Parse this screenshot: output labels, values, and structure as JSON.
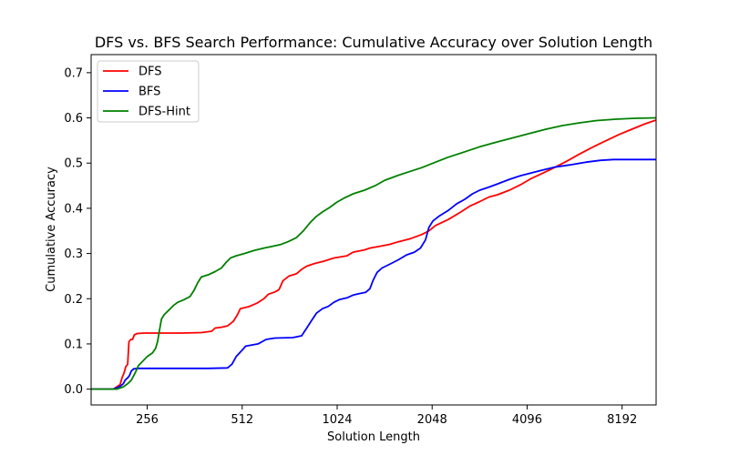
{
  "chart_data": {
    "type": "line",
    "title": "DFS vs. BFS Search Performance: Cumulative Accuracy over Solution Length",
    "xlabel": "Solution Length",
    "ylabel": "Cumulative Accuracy",
    "x_scale": "log2",
    "xlim": [
      170,
      10500
    ],
    "ylim": [
      -0.035,
      0.74
    ],
    "x_ticks": [
      256,
      512,
      1024,
      2048,
      4096,
      8192
    ],
    "x_tick_labels": [
      "256",
      "512",
      "1024",
      "2048",
      "4096",
      "8192"
    ],
    "y_ticks": [
      0.0,
      0.1,
      0.2,
      0.3,
      0.4,
      0.5,
      0.6,
      0.7
    ],
    "y_tick_labels": [
      "0.0",
      "0.1",
      "0.2",
      "0.3",
      "0.4",
      "0.5",
      "0.6",
      "0.7"
    ],
    "legend_position": "upper-left",
    "grid": false,
    "series": [
      {
        "name": "DFS",
        "color": "#ff0000",
        "points": [
          [
            170,
            0.0
          ],
          [
            200,
            0.0
          ],
          [
            205,
            0.005
          ],
          [
            210,
            0.01
          ],
          [
            213,
            0.025
          ],
          [
            216,
            0.035
          ],
          [
            219,
            0.05
          ],
          [
            222,
            0.055
          ],
          [
            224,
            0.105
          ],
          [
            227,
            0.11
          ],
          [
            230,
            0.11
          ],
          [
            233,
            0.12
          ],
          [
            238,
            0.123
          ],
          [
            250,
            0.124
          ],
          [
            330,
            0.124
          ],
          [
            380,
            0.125
          ],
          [
            410,
            0.128
          ],
          [
            420,
            0.135
          ],
          [
            440,
            0.137
          ],
          [
            460,
            0.14
          ],
          [
            480,
            0.15
          ],
          [
            495,
            0.165
          ],
          [
            505,
            0.178
          ],
          [
            540,
            0.183
          ],
          [
            570,
            0.19
          ],
          [
            600,
            0.2
          ],
          [
            620,
            0.21
          ],
          [
            650,
            0.215
          ],
          [
            670,
            0.22
          ],
          [
            690,
            0.24
          ],
          [
            720,
            0.25
          ],
          [
            760,
            0.255
          ],
          [
            790,
            0.265
          ],
          [
            820,
            0.272
          ],
          [
            870,
            0.278
          ],
          [
            930,
            0.283
          ],
          [
            1000,
            0.29
          ],
          [
            1100,
            0.295
          ],
          [
            1150,
            0.303
          ],
          [
            1250,
            0.308
          ],
          [
            1300,
            0.312
          ],
          [
            1400,
            0.316
          ],
          [
            1500,
            0.32
          ],
          [
            1600,
            0.326
          ],
          [
            1750,
            0.333
          ],
          [
            1900,
            0.342
          ],
          [
            2000,
            0.35
          ],
          [
            2100,
            0.362
          ],
          [
            2300,
            0.375
          ],
          [
            2500,
            0.39
          ],
          [
            2700,
            0.405
          ],
          [
            2900,
            0.415
          ],
          [
            3100,
            0.425
          ],
          [
            3300,
            0.43
          ],
          [
            3600,
            0.44
          ],
          [
            3900,
            0.452
          ],
          [
            4200,
            0.465
          ],
          [
            4600,
            0.478
          ],
          [
            5000,
            0.49
          ],
          [
            5500,
            0.505
          ],
          [
            6000,
            0.52
          ],
          [
            6600,
            0.535
          ],
          [
            7200,
            0.548
          ],
          [
            8000,
            0.563
          ],
          [
            8800,
            0.575
          ],
          [
            9700,
            0.587
          ],
          [
            10500,
            0.595
          ]
        ]
      },
      {
        "name": "BFS",
        "color": "#0000ff",
        "points": [
          [
            170,
            0.0
          ],
          [
            200,
            0.0
          ],
          [
            205,
            0.003
          ],
          [
            210,
            0.006
          ],
          [
            215,
            0.012
          ],
          [
            218,
            0.02
          ],
          [
            222,
            0.025
          ],
          [
            225,
            0.03
          ],
          [
            228,
            0.04
          ],
          [
            232,
            0.045
          ],
          [
            240,
            0.046
          ],
          [
            300,
            0.046
          ],
          [
            400,
            0.046
          ],
          [
            460,
            0.047
          ],
          [
            475,
            0.055
          ],
          [
            490,
            0.072
          ],
          [
            510,
            0.085
          ],
          [
            525,
            0.095
          ],
          [
            545,
            0.097
          ],
          [
            575,
            0.1
          ],
          [
            610,
            0.11
          ],
          [
            650,
            0.113
          ],
          [
            740,
            0.114
          ],
          [
            790,
            0.118
          ],
          [
            820,
            0.135
          ],
          [
            850,
            0.152
          ],
          [
            880,
            0.168
          ],
          [
            920,
            0.178
          ],
          [
            960,
            0.183
          ],
          [
            1000,
            0.192
          ],
          [
            1040,
            0.198
          ],
          [
            1100,
            0.202
          ],
          [
            1150,
            0.208
          ],
          [
            1200,
            0.211
          ],
          [
            1260,
            0.214
          ],
          [
            1300,
            0.222
          ],
          [
            1330,
            0.24
          ],
          [
            1370,
            0.258
          ],
          [
            1420,
            0.268
          ],
          [
            1500,
            0.276
          ],
          [
            1600,
            0.286
          ],
          [
            1700,
            0.297
          ],
          [
            1800,
            0.303
          ],
          [
            1880,
            0.312
          ],
          [
            1950,
            0.33
          ],
          [
            2000,
            0.358
          ],
          [
            2060,
            0.372
          ],
          [
            2150,
            0.382
          ],
          [
            2300,
            0.395
          ],
          [
            2450,
            0.41
          ],
          [
            2600,
            0.42
          ],
          [
            2750,
            0.432
          ],
          [
            2900,
            0.44
          ],
          [
            3100,
            0.447
          ],
          [
            3300,
            0.454
          ],
          [
            3600,
            0.464
          ],
          [
            3900,
            0.472
          ],
          [
            4200,
            0.478
          ],
          [
            4600,
            0.485
          ],
          [
            5000,
            0.491
          ],
          [
            5600,
            0.496
          ],
          [
            6300,
            0.502
          ],
          [
            7000,
            0.506
          ],
          [
            7700,
            0.508
          ],
          [
            8500,
            0.508
          ],
          [
            10500,
            0.508
          ]
        ]
      },
      {
        "name": "DFS-Hint",
        "color": "#008000",
        "points": [
          [
            170,
            0.0
          ],
          [
            205,
            0.0
          ],
          [
            215,
            0.005
          ],
          [
            222,
            0.012
          ],
          [
            228,
            0.02
          ],
          [
            232,
            0.03
          ],
          [
            236,
            0.04
          ],
          [
            240,
            0.052
          ],
          [
            248,
            0.062
          ],
          [
            256,
            0.072
          ],
          [
            266,
            0.08
          ],
          [
            272,
            0.09
          ],
          [
            276,
            0.105
          ],
          [
            280,
            0.13
          ],
          [
            284,
            0.155
          ],
          [
            290,
            0.165
          ],
          [
            300,
            0.175
          ],
          [
            310,
            0.185
          ],
          [
            320,
            0.192
          ],
          [
            335,
            0.198
          ],
          [
            350,
            0.205
          ],
          [
            360,
            0.218
          ],
          [
            370,
            0.235
          ],
          [
            380,
            0.248
          ],
          [
            400,
            0.253
          ],
          [
            420,
            0.26
          ],
          [
            440,
            0.268
          ],
          [
            455,
            0.28
          ],
          [
            470,
            0.29
          ],
          [
            490,
            0.295
          ],
          [
            520,
            0.3
          ],
          [
            560,
            0.307
          ],
          [
            600,
            0.312
          ],
          [
            640,
            0.316
          ],
          [
            680,
            0.32
          ],
          [
            720,
            0.327
          ],
          [
            760,
            0.335
          ],
          [
            800,
            0.35
          ],
          [
            840,
            0.368
          ],
          [
            880,
            0.382
          ],
          [
            920,
            0.392
          ],
          [
            970,
            0.402
          ],
          [
            1020,
            0.413
          ],
          [
            1080,
            0.423
          ],
          [
            1150,
            0.432
          ],
          [
            1250,
            0.44
          ],
          [
            1350,
            0.45
          ],
          [
            1450,
            0.462
          ],
          [
            1600,
            0.473
          ],
          [
            1750,
            0.482
          ],
          [
            1900,
            0.49
          ],
          [
            2100,
            0.502
          ],
          [
            2300,
            0.513
          ],
          [
            2600,
            0.525
          ],
          [
            2900,
            0.536
          ],
          [
            3300,
            0.547
          ],
          [
            3700,
            0.556
          ],
          [
            4200,
            0.566
          ],
          [
            4700,
            0.575
          ],
          [
            5300,
            0.583
          ],
          [
            6000,
            0.589
          ],
          [
            6800,
            0.594
          ],
          [
            7800,
            0.597
          ],
          [
            9000,
            0.599
          ],
          [
            10500,
            0.6
          ]
        ]
      }
    ]
  }
}
